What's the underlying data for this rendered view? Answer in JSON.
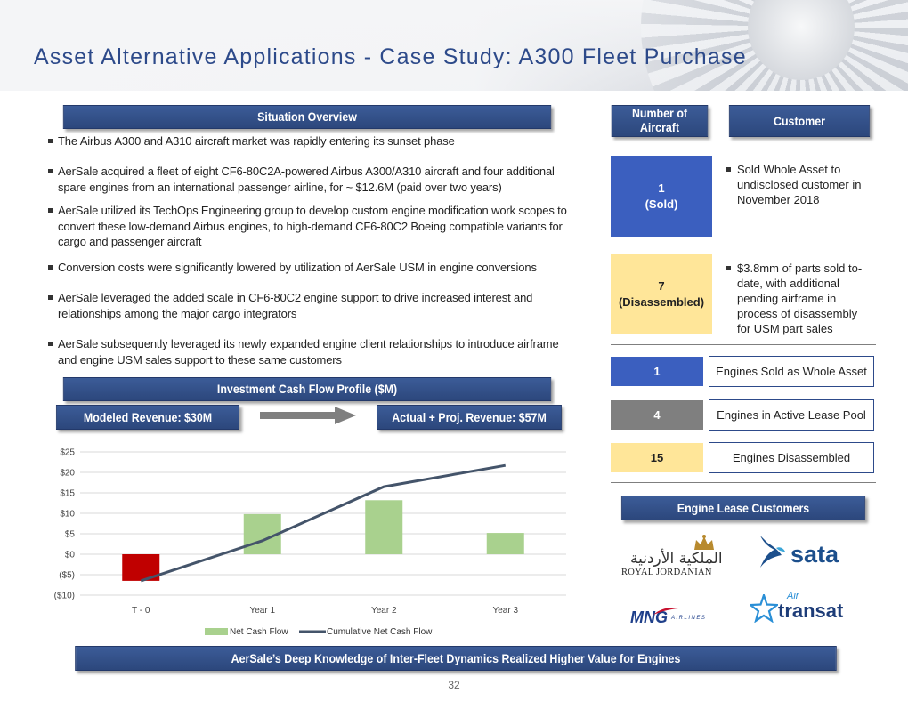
{
  "title": "Asset Alternative Applications - Case Study: A300 Fleet Purchase",
  "situation": {
    "header": "Situation Overview",
    "bullets": [
      "The Airbus A300 and A310 aircraft market was rapidly entering its sunset phase",
      "AerSale acquired a fleet of eight CF6-80C2A-powered Airbus A300/A310 aircraft and four additional spare engines from an international passenger airline, for ~ $12.6M (paid over two years)",
      "AerSale utilized its TechOps Engineering group to develop custom engine modification work scopes to convert these low-demand Airbus engines, to high-demand CF6-80C2 Boeing compatible variants for cargo and passenger aircraft",
      "Conversion costs were significantly lowered by utilization of AerSale USM in engine conversions",
      "AerSale leveraged the added scale in CF6-80C2 engine support to drive increased interest and relationships among the major cargo integrators",
      "AerSale subsequently leveraged its newly expanded engine client relationships to introduce airframe and engine USM sales support to these same customers"
    ]
  },
  "cashflow": {
    "header": "Investment Cash Flow Profile ($M)",
    "modeled": "Modeled Revenue: $30M",
    "actual": "Actual + Proj. Revenue: $57M"
  },
  "chart_data": {
    "type": "bar",
    "categories": [
      "T - 0",
      "Year 1",
      "Year 2",
      "Year 3"
    ],
    "series": [
      {
        "name": "Net Cash Flow",
        "type": "bar",
        "values": [
          -6.5,
          9.8,
          13.2,
          5.2
        ],
        "colors": [
          "#c00000",
          "#a9d18e",
          "#a9d18e",
          "#a9d18e"
        ]
      },
      {
        "name": "Cumulative Net Cash Flow",
        "type": "line",
        "values": [
          -6.5,
          3.3,
          16.5,
          21.7
        ],
        "color": "#44546a"
      }
    ],
    "y_ticks": [
      "$25",
      "$20",
      "$15",
      "$10",
      "$5",
      "$0",
      "($5)",
      "($10)"
    ],
    "y_tick_values": [
      25,
      20,
      15,
      10,
      5,
      0,
      -5,
      -10
    ],
    "ylim": [
      -10,
      25
    ],
    "grid": true,
    "legend": "bottom"
  },
  "fleet": {
    "number_header": "Number of Aircraft",
    "customer_header": "Customer",
    "sold_box": "1\n(Sold)",
    "sold_text": "Sold Whole Asset to undisclosed customer in November 2018",
    "disassembled_box": "7\n(Disassembled)",
    "disassembled_text": "$3.8mm of parts sold to-date, with additional pending airframe in process of disassembly for USM part sales",
    "sold_color": "#3b5fbf",
    "disassembled_color": "#ffe699"
  },
  "engines": [
    {
      "count": "1",
      "label": "Engines Sold as Whole Asset",
      "color": "#3b5fbf",
      "text_color": "#ffffff"
    },
    {
      "count": "4",
      "label": "Engines in Active Lease Pool",
      "color": "#7f7f7f",
      "text_color": "#ffffff"
    },
    {
      "count": "15",
      "label": "Engines Disassembled",
      "color": "#ffe699",
      "text_color": "#222222"
    }
  ],
  "lease": {
    "header": "Engine Lease Customers",
    "logos": {
      "royal_jordanian_arabic": "الملكية الأردنية",
      "royal_jordanian": "ROYAL JORDANIAN",
      "sata": "sata",
      "mng": "MNG",
      "mng_sub": "AIRLINES",
      "air": "Air",
      "transat": "transat"
    }
  },
  "footer": {
    "banner": "AerSale’s Deep Knowledge of Inter-Fleet Dynamics Realized Higher Value for Engines",
    "page": "32"
  }
}
